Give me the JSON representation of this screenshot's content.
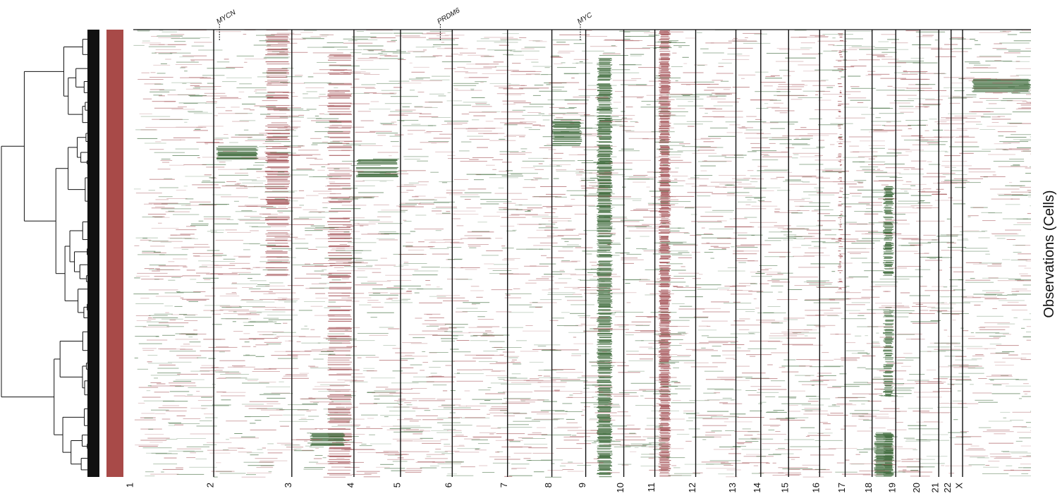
{
  "chart_data": {
    "type": "heatmap",
    "ylabel": "Observations (Cells)",
    "chromosomes": [
      "1",
      "2",
      "3",
      "4",
      "5",
      "6",
      "7",
      "8",
      "9",
      "10",
      "11",
      "12",
      "13",
      "14",
      "15",
      "16",
      "17",
      "18",
      "19",
      "20",
      "21",
      "22",
      "X"
    ],
    "chromosome_boundaries": [
      0.0,
      0.0896,
      0.1766,
      0.2458,
      0.2977,
      0.3553,
      0.4169,
      0.4663,
      0.504,
      0.5464,
      0.581,
      0.6265,
      0.6713,
      0.699,
      0.73,
      0.7646,
      0.793,
      0.823,
      0.8494,
      0.8762,
      0.8973,
      0.911,
      0.9238,
      1.0
    ],
    "annotated_genes": [
      {
        "gene": "MYCN",
        "chromosome": "2",
        "position": 0.096
      },
      {
        "gene": "PRDM6",
        "chromosome": "5",
        "position": 0.342
      },
      {
        "gene": "MYC",
        "chromosome": "8",
        "position": 0.498
      }
    ],
    "cell_group_color": "#a84a48",
    "gain_color": "#3f6b3c",
    "loss_color": "#a85a5e",
    "neutral_color": "#ffffff",
    "cluster_bar_label": ""
  }
}
